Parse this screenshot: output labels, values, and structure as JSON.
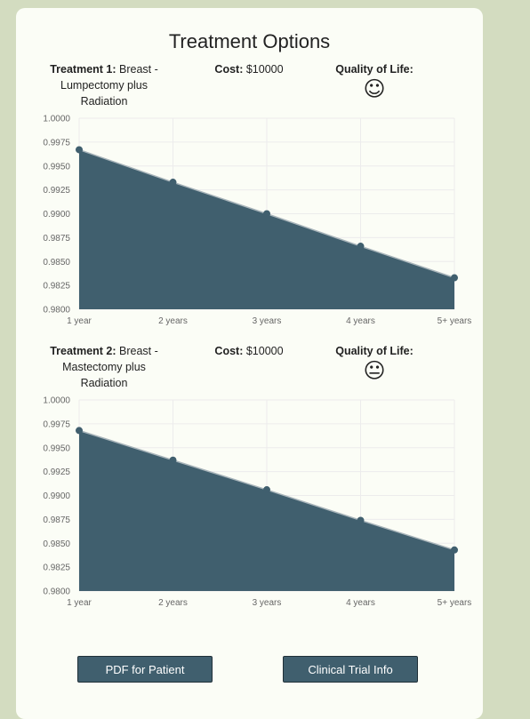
{
  "page": {
    "title": "Treatment Options"
  },
  "treatments": [
    {
      "label": "Treatment 1:",
      "name": "Breast - Lumpectomy plus Radiation",
      "cost_label": "Cost:",
      "cost_value": "$10000",
      "qol_label": "Quality of Life:",
      "qol_icon": "smiling-face-icon",
      "qol_glyph": "☺"
    },
    {
      "label": "Treatment 2:",
      "name": "Breast - Mastectomy plus Radiation",
      "cost_label": "Cost:",
      "cost_value": "$10000",
      "qol_label": "Quality of Life:",
      "qol_icon": "neutral-face-icon",
      "qol_glyph": "😐"
    }
  ],
  "chart_data": [
    {
      "type": "area",
      "title": "",
      "xlabel": "",
      "ylabel": "",
      "categories": [
        "1 year",
        "2 years",
        "3 years",
        "4 years",
        "5+ years"
      ],
      "values": [
        0.9967,
        0.9933,
        0.99,
        0.9866,
        0.9833
      ],
      "ylim": [
        0.98,
        1.0
      ],
      "yticks": [
        "1.0000",
        "0.9975",
        "0.9950",
        "0.9925",
        "0.9900",
        "0.9875",
        "0.9850",
        "0.9825",
        "0.9800"
      ],
      "grid": true,
      "fill_color": "#405f6e",
      "line_color": "#a8b4ba"
    },
    {
      "type": "area",
      "title": "",
      "xlabel": "",
      "ylabel": "",
      "categories": [
        "1 year",
        "2 years",
        "3 years",
        "4 years",
        "5+ years"
      ],
      "values": [
        0.9968,
        0.9937,
        0.9906,
        0.9874,
        0.9843
      ],
      "ylim": [
        0.98,
        1.0
      ],
      "yticks": [
        "1.0000",
        "0.9975",
        "0.9950",
        "0.9925",
        "0.9900",
        "0.9875",
        "0.9850",
        "0.9825",
        "0.9800"
      ],
      "grid": true,
      "fill_color": "#405f6e",
      "line_color": "#a8b4ba"
    }
  ],
  "buttons": {
    "pdf_label": "PDF for Patient",
    "trial_label": "Clinical Trial Info"
  }
}
